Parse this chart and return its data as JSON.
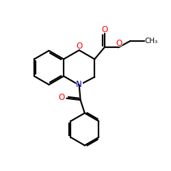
{
  "bg_color": "#ffffff",
  "bond_color": "#000000",
  "oxygen_color": "#ff0000",
  "nitrogen_color": "#0000cc",
  "line_width": 1.6,
  "figsize": [
    2.5,
    2.5
  ],
  "dpi": 100,
  "xlim": [
    0,
    10
  ],
  "ylim": [
    0,
    10
  ]
}
